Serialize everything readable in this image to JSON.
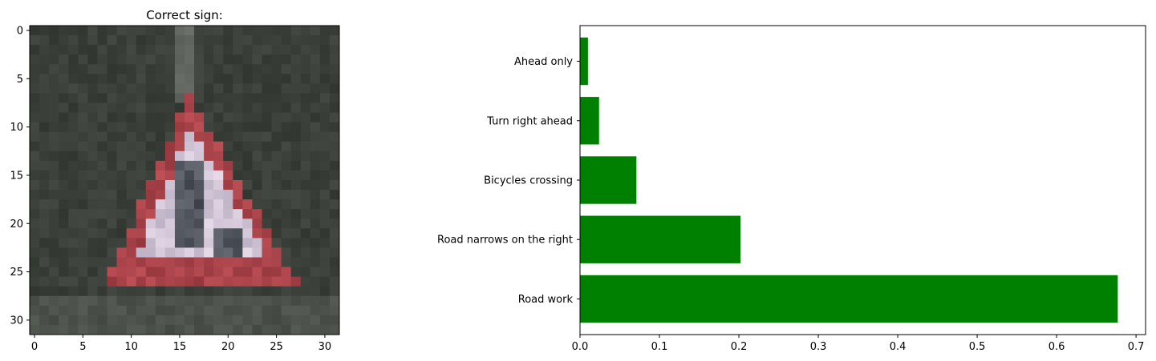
{
  "chart_data": [
    {
      "type": "image",
      "title": "Correct sign:",
      "xlim": [
        -0.5,
        31.5
      ],
      "ylim": [
        31.5,
        -0.5
      ],
      "xticks": [
        0,
        5,
        10,
        15,
        20,
        25,
        30
      ],
      "yticks": [
        0,
        5,
        10,
        15,
        20,
        25,
        30
      ],
      "xtick_labels": [
        "0",
        "5",
        "10",
        "15",
        "20",
        "25",
        "30"
      ],
      "ytick_labels": [
        "0",
        "5",
        "10",
        "15",
        "20",
        "25",
        "30"
      ],
      "content": "pixelated photograph of a red-bordered triangular road work warning sign"
    },
    {
      "type": "bar",
      "orientation": "horizontal",
      "categories": [
        "Road work",
        "Road narrows on the right",
        "Bicycles crossing",
        "Turn right ahead",
        "Ahead only"
      ],
      "values": [
        0.677,
        0.202,
        0.071,
        0.024,
        0.01
      ],
      "xlim": [
        0,
        0.712
      ],
      "xticks": [
        0.0,
        0.1,
        0.2,
        0.3,
        0.4,
        0.5,
        0.6,
        0.7
      ],
      "xtick_labels": [
        "0.0",
        "0.1",
        "0.2",
        "0.3",
        "0.4",
        "0.5",
        "0.6",
        "0.7"
      ],
      "bar_color": "#008000",
      "grid": false
    }
  ],
  "colors": {
    "bar": "#008000",
    "sign_red": "#9a3a40",
    "sign_white": "#c8bccf",
    "background_dark": "#3a3c38"
  }
}
